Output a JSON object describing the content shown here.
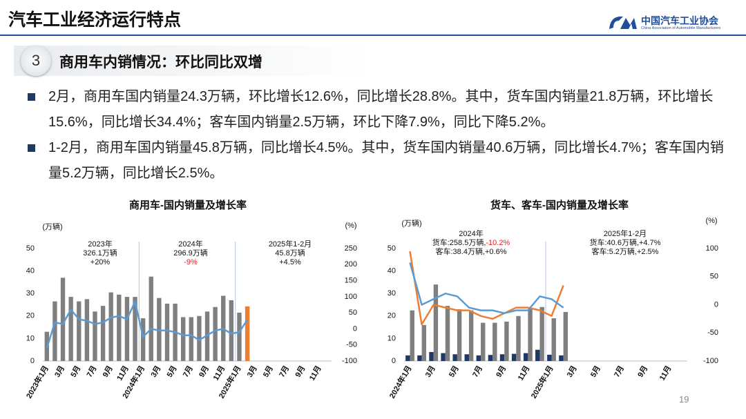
{
  "header": {
    "title": "汽车工业经济运行特点",
    "logo_name": "中国汽车工业协会",
    "logo_subtitle": "China Association of Automobile Manufacturers"
  },
  "section": {
    "number": "3",
    "title": "商用车内销情况：环比同比双增"
  },
  "bullets": [
    "2月，商用车国内销量24.3万辆，环比增长12.6%，同比增长28.8%。其中，货车国内销量21.8万辆，环比增长15.6%，同比增长34.4%；客车国内销量2.5万辆，环比下降7.9%，同比下降5.2%。",
    "1-2月，商用车国内销量45.8万辆，同比增长4.5%。其中，货车国内销量40.6万辆，同比增长4.7%；客车国内销量5.2万辆，同比增长2.5%。"
  ],
  "page_number": "19",
  "chart_data": [
    {
      "type": "bar",
      "title": "商用车-国内销量及增长率",
      "ylabel": "(万辆)",
      "y2label": "(%)",
      "bar_mode": "overlay",
      "categories": [
        "2023年1月",
        null,
        "3月",
        null,
        "5月",
        null,
        "7月",
        null,
        "9月",
        null,
        "11月",
        null,
        "2024年1月",
        null,
        "3月",
        null,
        "5月",
        null,
        "7月",
        null,
        "9月",
        null,
        "11月",
        null,
        "2025年1月",
        null,
        "3月",
        null,
        "5月",
        null,
        "7月",
        null,
        "9月",
        null,
        "11月",
        null
      ],
      "series": [
        {
          "type": "bar",
          "color": "#7f7f7f",
          "values": [
            13,
            26.5,
            37,
            28.5,
            26.5,
            27.5,
            22,
            24.5,
            30.5,
            29.5,
            28.5,
            28.5,
            19,
            37.5,
            28,
            25.5,
            25.5,
            19.5,
            19.5,
            20,
            22,
            24,
            29,
            27,
            21.5,
            null,
            null,
            null,
            null,
            null,
            null,
            null,
            null,
            null,
            null,
            null
          ]
        },
        {
          "type": "bar",
          "color": "#ed7d31",
          "values": [
            null,
            null,
            null,
            null,
            null,
            null,
            null,
            null,
            null,
            null,
            null,
            null,
            null,
            null,
            null,
            null,
            null,
            null,
            null,
            null,
            null,
            null,
            null,
            null,
            null,
            24.3,
            null,
            null,
            null,
            null,
            null,
            null,
            null,
            null,
            null,
            null
          ]
        },
        {
          "type": "line",
          "axis": "y2",
          "color": "#5b9bd5",
          "values": [
            -60,
            20,
            15,
            60,
            30,
            25,
            15,
            20,
            35,
            40,
            30,
            85,
            -25,
            0,
            -5,
            -5,
            -10,
            -20,
            -20,
            -35,
            -20,
            -5,
            0,
            -15,
            -10,
            28.8,
            null,
            null,
            null,
            null,
            null,
            null,
            null,
            null,
            null,
            null
          ]
        }
      ],
      "ylim": [
        0,
        50
      ],
      "yticks": [
        0,
        10,
        20,
        30,
        40,
        50
      ],
      "y2lim": [
        -100,
        250
      ],
      "y2ticks": [
        -100,
        -50,
        0,
        50,
        100,
        150,
        200,
        250
      ],
      "annotations": [
        [
          "2023年",
          "326.1万辆",
          "+20%"
        ],
        [
          "2024年",
          "296.9万辆",
          "-9%"
        ],
        [
          "2025年1-2月",
          "45.8万辆",
          "+4.5%"
        ]
      ]
    },
    {
      "type": "bar",
      "title": "货车、客车-国内销量及增长率",
      "ylabel": "(万辆)",
      "y2label": "(%)",
      "bar_mode": "group",
      "categories": [
        "2024年1月",
        null,
        "3月",
        null,
        "5月",
        null,
        "7月",
        null,
        "9月",
        null,
        "11月",
        null,
        "2025年1月",
        null,
        "3月",
        null,
        "5月",
        null,
        "7月",
        null,
        "9月",
        null,
        "11月",
        null
      ],
      "series": [
        {
          "type": "bar",
          "color": "#1f3864",
          "values": [
            2.5,
            2.5,
            4,
            3.5,
            3,
            3,
            2.5,
            2.7,
            3,
            3.2,
            3.5,
            5,
            2.8,
            2.5,
            null,
            null,
            null,
            null,
            null,
            null,
            null,
            null,
            null,
            null
          ]
        },
        {
          "type": "bar",
          "color": "#7f7f7f",
          "values": [
            22.5,
            16,
            34,
            24.5,
            23,
            22.5,
            17,
            17,
            17.5,
            20,
            23.5,
            24,
            19,
            21.8,
            null,
            null,
            null,
            null,
            null,
            null,
            null,
            null,
            null,
            null
          ]
        },
        {
          "type": "line",
          "axis": "y2",
          "color": "#ed7d31",
          "values": [
            95,
            -35,
            0,
            -5,
            -10,
            -10,
            -20,
            -25,
            -15,
            -5,
            -5,
            -10,
            -20,
            34.4,
            null,
            null,
            null,
            null,
            null,
            null,
            null,
            null,
            null,
            null
          ]
        },
        {
          "type": "line",
          "axis": "y2",
          "color": "#5b9bd5",
          "values": [
            75,
            0,
            10,
            20,
            15,
            -5,
            -10,
            -10,
            -15,
            -10,
            -10,
            15,
            10,
            -5.2,
            null,
            null,
            null,
            null,
            null,
            null,
            null,
            null,
            null,
            null
          ]
        }
      ],
      "ylim": [
        0,
        50
      ],
      "yticks": [
        0,
        10,
        20,
        30,
        40,
        50
      ],
      "y2lim": [
        -100,
        100
      ],
      "y2ticks": [
        -100,
        -50,
        0,
        50,
        100
      ],
      "annotations": [
        [
          "2024年",
          "货车:258.5万辆,",
          "-10.2%",
          "客车:38.4万辆,+0.6%"
        ],
        [
          "2025年1-2月",
          "货车:40.6万辆,+4.7%",
          "客车:5.2万辆,+2.5%"
        ]
      ]
    }
  ]
}
